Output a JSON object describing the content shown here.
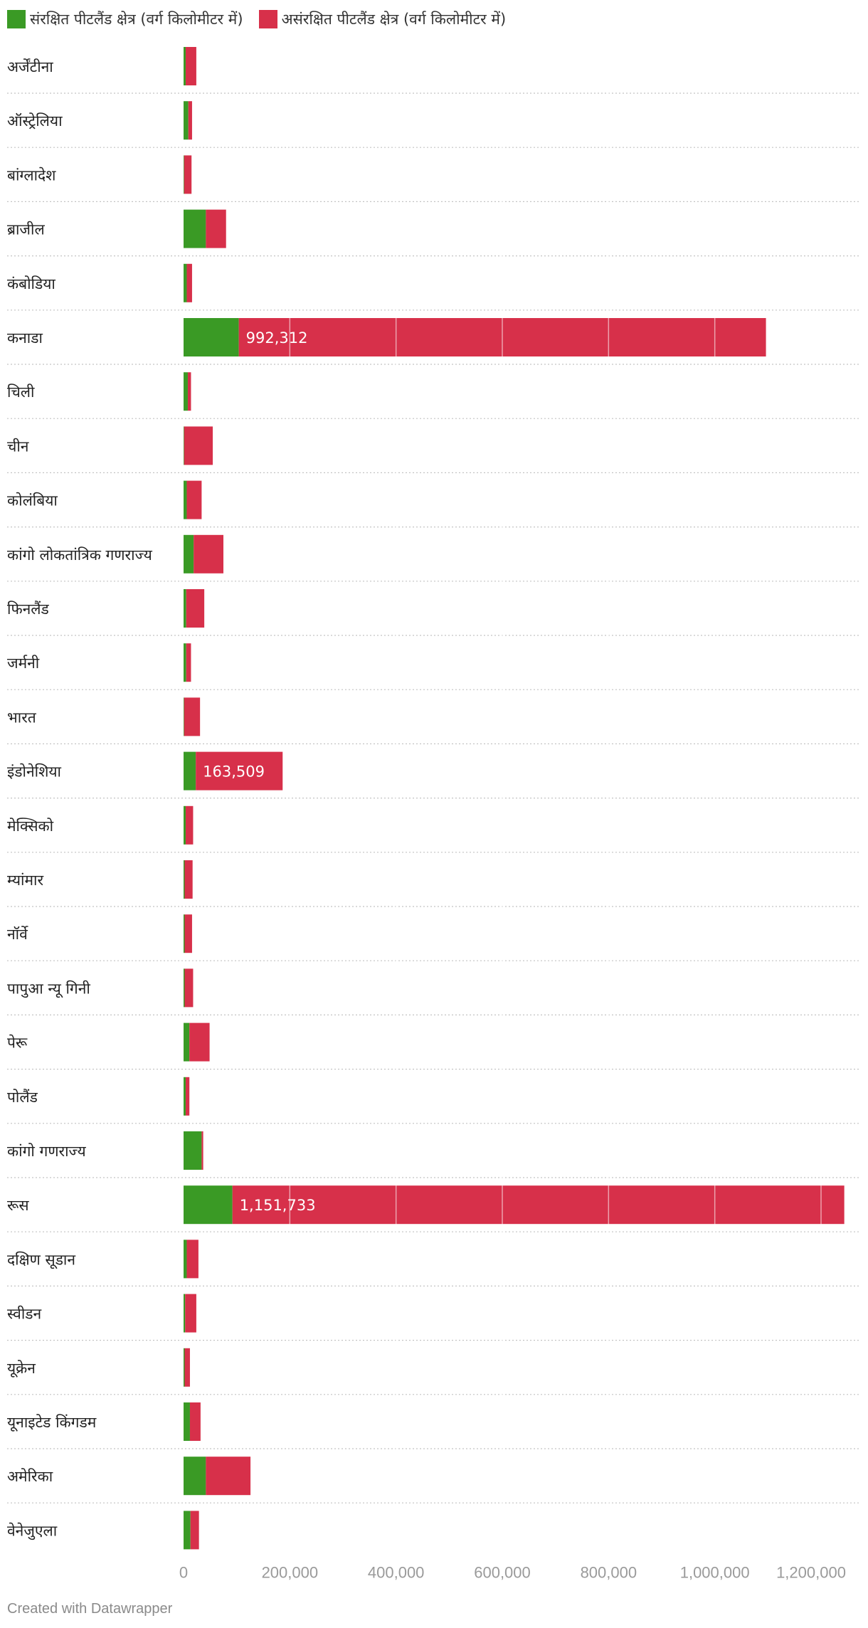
{
  "chart_data": {
    "type": "bar",
    "orientation": "horizontal",
    "stacked": true,
    "categories": [
      "अर्जेंटीना",
      "ऑस्ट्रेलिया",
      "बांग्लादेश",
      "ब्राजील",
      "कंबोडिया",
      "कनाडा",
      "चिली",
      "चीन",
      "कोलंबिया",
      "कांगो लोकतांत्रिक गणराज्य",
      "फिनलैंड",
      "जर्मनी",
      "भारत",
      "इंडोनेशिया",
      "मेक्सिको",
      "म्यांमार",
      "नॉर्वे",
      "पापुआ न्यू गिनी",
      "पेरू",
      "पोलैंड",
      "कांगो गणराज्य",
      "रूस",
      "दक्षिण सूडान",
      "स्वीडन",
      "यूक्रेन",
      "यूनाइटेड किंगडम",
      "अमेरिका",
      "वेनेजुएला"
    ],
    "series": [
      {
        "name": "संरक्षित पीटलैंड क्षेत्र (वर्ग किलोमीटर में)",
        "color": "#3a9a25",
        "values": [
          4000,
          9000,
          1000,
          42000,
          6000,
          104000,
          8000,
          1000,
          6000,
          19000,
          5000,
          5000,
          1000,
          23000,
          4000,
          2000,
          2000,
          2000,
          11000,
          4000,
          34000,
          92000,
          6000,
          3000,
          2000,
          12000,
          42000,
          13000
        ]
      },
      {
        "name": "असंरक्षित पीटलैंड क्षेत्र (वर्ग किलोमीटर में)",
        "color": "#d7304a",
        "values": [
          20000,
          7000,
          14000,
          38000,
          10000,
          992312,
          6000,
          54000,
          28000,
          56000,
          34000,
          9000,
          30000,
          163509,
          14000,
          15000,
          14000,
          16000,
          38000,
          7000,
          3000,
          1151733,
          22000,
          21000,
          10000,
          20000,
          84000,
          16000
        ]
      }
    ],
    "data_labels": [
      {
        "category": "कनाडा",
        "text": "992,312"
      },
      {
        "category": "इंडोनेशिया",
        "text": "163,509"
      },
      {
        "category": "रूस",
        "text": "1,151,733"
      }
    ],
    "x_ticks": [
      0,
      200000,
      400000,
      600000,
      800000,
      1000000,
      1200000
    ],
    "x_tick_labels": [
      "0",
      "200,000",
      "400,000",
      "600,000",
      "800,000",
      "1,000,000",
      "1,200,000"
    ],
    "xlim": [
      0,
      1275000
    ],
    "legend_position": "top-left",
    "grid": true
  },
  "footer": "Created with Datawrapper"
}
